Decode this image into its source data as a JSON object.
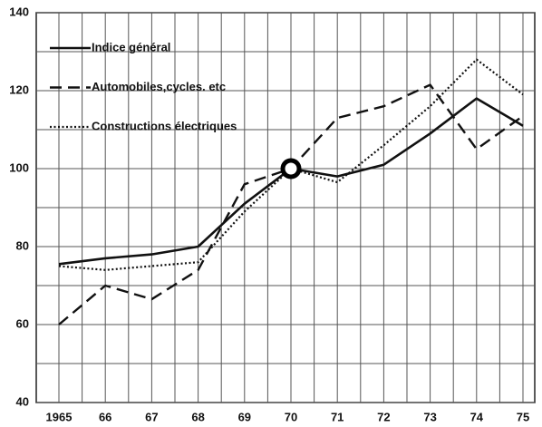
{
  "chart_data": {
    "type": "line",
    "categories": [
      "1965",
      "66",
      "67",
      "68",
      "69",
      "70",
      "71",
      "72",
      "73",
      "74",
      "75"
    ],
    "series": [
      {
        "name": "Indice général",
        "color": "#111111",
        "dash": "solid",
        "values": [
          75.5,
          77,
          78,
          80,
          91,
          100,
          98,
          101,
          109,
          118,
          111
        ]
      },
      {
        "name": "Automobiles,cycles. etc",
        "color": "#111111",
        "dash": "dashed",
        "values": [
          60,
          70,
          66.5,
          74,
          96,
          100,
          113,
          116,
          121.5,
          105,
          113.5
        ]
      },
      {
        "name": "Constructions électriques",
        "color": "#111111",
        "dash": "dotted",
        "values": [
          75,
          74,
          75,
          76,
          89,
          100,
          96.5,
          106,
          116,
          128,
          119
        ]
      }
    ],
    "ylim": [
      40,
      140
    ],
    "yticks": [
      40,
      60,
      80,
      100,
      120,
      140
    ],
    "minor_yticks": [
      50,
      70,
      90,
      110,
      130
    ],
    "grid": true,
    "legend": "upper left"
  }
}
